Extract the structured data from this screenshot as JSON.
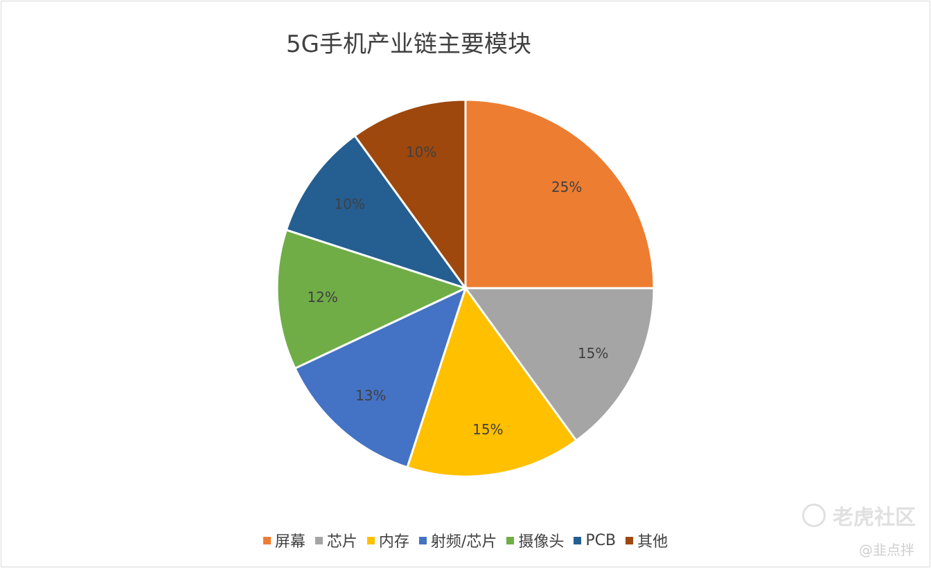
{
  "chart_data": {
    "type": "pie",
    "title": "5G手机产业链主要模块",
    "categories": [
      "屏幕",
      "芯片",
      "内存",
      "射频/芯片",
      "摄像头",
      "PCB",
      "其他"
    ],
    "values": [
      25,
      15,
      15,
      13,
      12,
      10,
      10
    ],
    "labels": [
      "25%",
      "15%",
      "15%",
      "13%",
      "12%",
      "10%",
      "10%"
    ],
    "colors": [
      "#ed7d31",
      "#a5a5a5",
      "#ffc000",
      "#4472c4",
      "#70ad47",
      "#255e91",
      "#9e480e"
    ],
    "legend_position": "bottom",
    "start_angle": "top, clockwise"
  },
  "watermark": {
    "brand": "老虎社区",
    "handle": "@韭点拌"
  }
}
